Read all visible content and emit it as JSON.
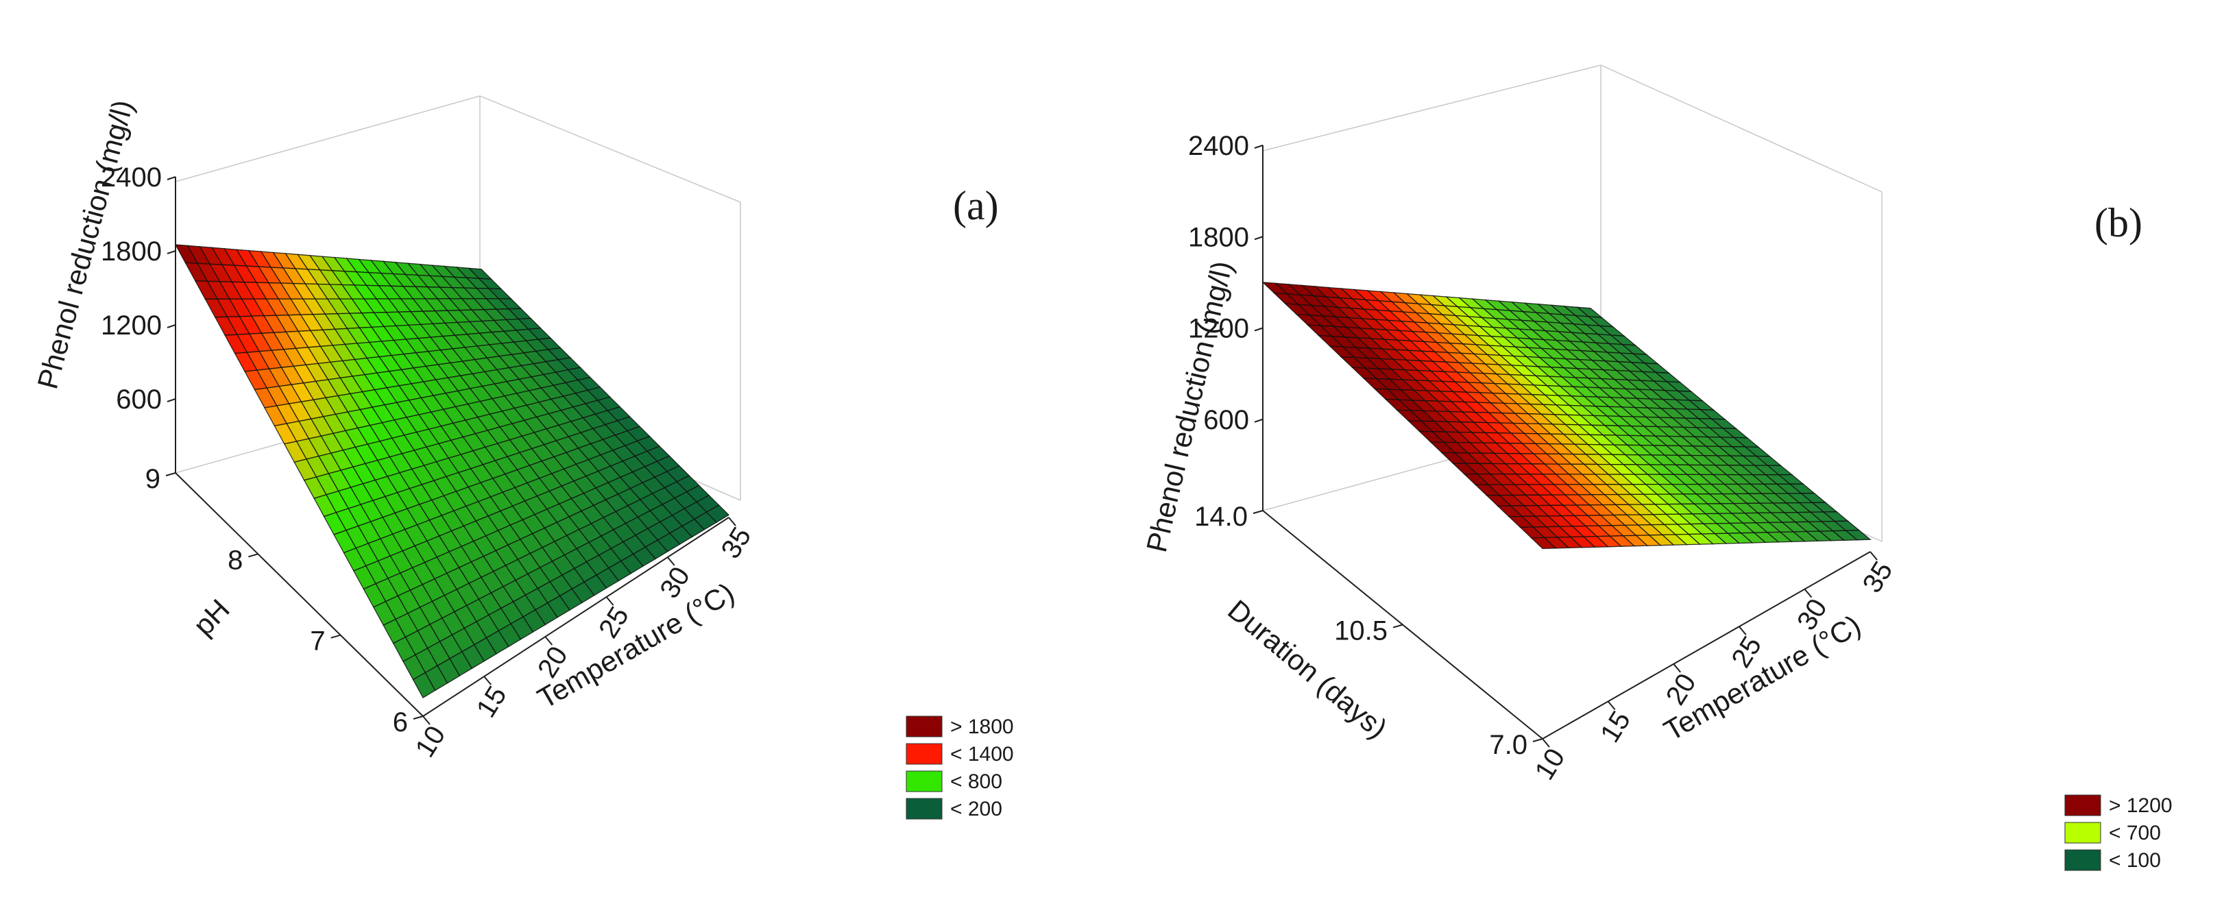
{
  "chart_data": [
    {
      "type": "surface",
      "panel_label": "(a)",
      "z_label": "Phenol reduction (mg/l)",
      "x_label": "Temperature (°C)",
      "y_label": "pH",
      "x_ticks": [
        "10",
        "15",
        "20",
        "25",
        "30",
        "35"
      ],
      "y_ticks": [
        "6",
        "7",
        "8",
        "9"
      ],
      "z_ticks": [
        "600",
        "1200",
        "1800",
        "2400"
      ],
      "x_range": [
        10,
        35
      ],
      "y_range": [
        6,
        9
      ],
      "z_range": [
        0,
        2400
      ],
      "surface_corners": {
        "T10_pH6": 150,
        "T35_pH6": 20,
        "T10_pH9": 1850,
        "T35_pH9": 40
      },
      "legend": [
        {
          "label": "> 1800",
          "color": "#8b0000"
        },
        {
          "label": "< 1400",
          "color": "#ff1a00"
        },
        {
          "label": "< 800",
          "color": "#33e600"
        },
        {
          "label": "< 200",
          "color": "#0b5e3a"
        }
      ]
    },
    {
      "type": "surface",
      "panel_label": "(b)",
      "z_label": "Phenol reduction (mg/l)",
      "x_label": "Temperature (°C)",
      "y_label": "Duration (days)",
      "x_ticks": [
        "10",
        "15",
        "20",
        "25",
        "30",
        "35"
      ],
      "y_ticks": [
        "7.0",
        "10.5",
        "14.0"
      ],
      "z_ticks": [
        "600",
        "1200",
        "1800",
        "2400"
      ],
      "x_range": [
        10,
        35
      ],
      "y_range": [
        7,
        14
      ],
      "z_range": [
        0,
        2400
      ],
      "surface_corners": {
        "T10_D7": 1250,
        "T35_D7": 80,
        "T10_D14": 1500,
        "T35_D14": 100
      },
      "legend": [
        {
          "label": "> 1200",
          "color": "#8b0000"
        },
        {
          "label": "< 700",
          "color": "#b8ff00"
        },
        {
          "label": "< 100",
          "color": "#0b5e3a"
        }
      ]
    }
  ]
}
